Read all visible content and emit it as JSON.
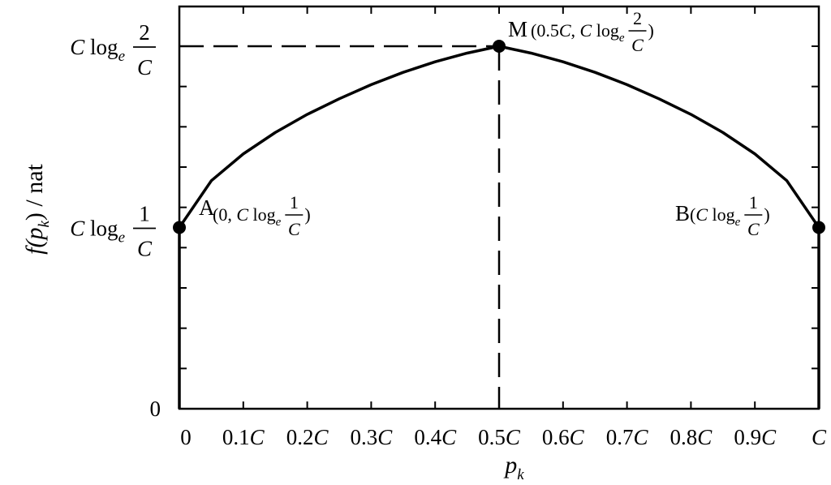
{
  "chart_data": {
    "type": "line",
    "xlabel": "p",
    "xlabel_sub": "k",
    "ylabel": {
      "prefix": "f(p",
      "sub": "k",
      "suffix": ") / nat"
    },
    "x_ticks": [
      {
        "num": "0",
        "unit": ""
      },
      {
        "num": "0.1",
        "unit": "C"
      },
      {
        "num": "0.2",
        "unit": "C"
      },
      {
        "num": "0.3",
        "unit": "C"
      },
      {
        "num": "0.4",
        "unit": "C"
      },
      {
        "num": "0.5",
        "unit": "C"
      },
      {
        "num": "0.6",
        "unit": "C"
      },
      {
        "num": "0.7",
        "unit": "C"
      },
      {
        "num": "0.8",
        "unit": "C"
      },
      {
        "num": "0.9",
        "unit": "C"
      },
      {
        "num": "",
        "unit": "C"
      }
    ],
    "y_ticks": [
      {
        "label": "0"
      },
      {
        "label": "C loge(1/C)",
        "c": "C",
        "log": "log",
        "base": "e",
        "numer": "1",
        "denom": "C"
      },
      {
        "label": "C loge(2/C)",
        "c": "C",
        "log": "log",
        "base": "e",
        "numer": "2",
        "denom": "C"
      }
    ],
    "xlim": [
      0,
      1
    ],
    "x_unit": "C",
    "series": [
      {
        "x": [
          0,
          0.05,
          0.1,
          0.15,
          0.2,
          0.25,
          0.3,
          0.35,
          0.4,
          0.45,
          0.5,
          0.55,
          0.6,
          0.65,
          0.7,
          0.75,
          0.8,
          0.85,
          0.9,
          0.95,
          1
        ],
        "y": [
          0.5,
          0.629,
          0.703,
          0.762,
          0.812,
          0.855,
          0.894,
          0.928,
          0.957,
          0.981,
          1.0,
          0.981,
          0.957,
          0.928,
          0.894,
          0.855,
          0.812,
          0.762,
          0.703,
          0.629,
          0.5
        ]
      }
    ],
    "points": [
      {
        "name": "A",
        "x": 0,
        "y": 0.5,
        "coord_prefix": "(0, ",
        "c": "C",
        "log": "log",
        "base": "e",
        "numer": "1",
        "denom": "C",
        "close": ")"
      },
      {
        "name": "M",
        "x": 0.5,
        "y": 1.0,
        "coord_prefix": "(0.5",
        "c": "C",
        "log": "log",
        "base": "e",
        "numer": "2",
        "denom": "C",
        "close": ")"
      },
      {
        "name": "B",
        "x": 1,
        "y": 0.5,
        "coord_prefix": "(",
        "c": "C",
        "log": "log",
        "base": "e",
        "numer": "1",
        "denom": "C",
        "close": ")"
      }
    ],
    "reference_lines": [
      {
        "kind": "horizontal",
        "from_x": 0,
        "to_x": 0.5,
        "y": 1.0,
        "style": "dashed"
      },
      {
        "kind": "vertical",
        "x": 0.5,
        "from_y": 0,
        "to_y": 1.0,
        "style": "dashed"
      }
    ],
    "grid": false,
    "line_color": "#000000"
  }
}
